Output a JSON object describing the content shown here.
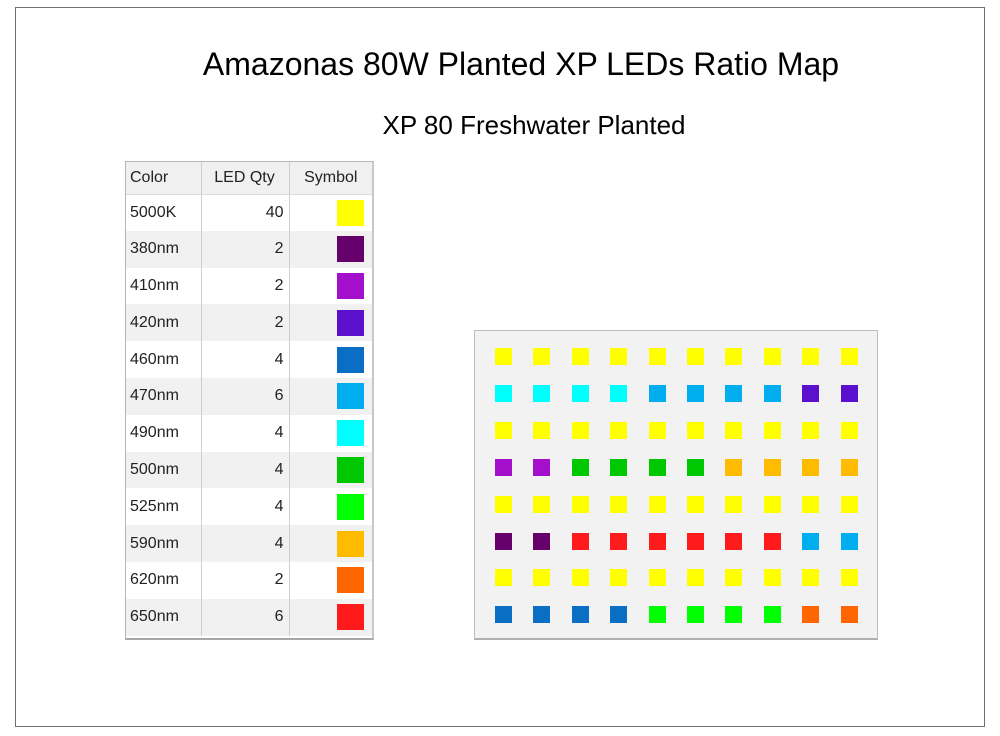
{
  "title": "Amazonas 80W Planted XP LEDs Ratio Map",
  "subtitle": "XP 80 Freshwater Planted",
  "legend": {
    "headers": {
      "color": "Color",
      "qty": "LED Qty",
      "symbol": "Symbol"
    },
    "rows": [
      {
        "color": "5000K",
        "qty": "40",
        "swatch": "#ffff00"
      },
      {
        "color": "380nm",
        "qty": "2",
        "swatch": "#66006a"
      },
      {
        "color": "410nm",
        "qty": "2",
        "swatch": "#a40fcc"
      },
      {
        "color": "420nm",
        "qty": "2",
        "swatch": "#5a10cc"
      },
      {
        "color": "460nm",
        "qty": "4",
        "swatch": "#0a6fc4"
      },
      {
        "color": "470nm",
        "qty": "6",
        "swatch": "#00adee"
      },
      {
        "color": "490nm",
        "qty": "4",
        "swatch": "#00ffff"
      },
      {
        "color": "500nm",
        "qty": "4",
        "swatch": "#00c800"
      },
      {
        "color": "525nm",
        "qty": "4",
        "swatch": "#00ff00"
      },
      {
        "color": "590nm",
        "qty": "4",
        "swatch": "#ffbb00"
      },
      {
        "color": "620nm",
        "qty": "2",
        "swatch": "#ff6600"
      },
      {
        "color": "650nm",
        "qty": "6",
        "swatch": "#ff1b1b"
      }
    ]
  },
  "led_map": {
    "columns": 10,
    "rows": [
      [
        "5000K",
        "5000K",
        "5000K",
        "5000K",
        "5000K",
        "5000K",
        "5000K",
        "5000K",
        "5000K",
        "5000K"
      ],
      [
        "490nm",
        "490nm",
        "490nm",
        "490nm",
        "470nm",
        "470nm",
        "470nm",
        "470nm",
        "420nm",
        "420nm"
      ],
      [
        "5000K",
        "5000K",
        "5000K",
        "5000K",
        "5000K",
        "5000K",
        "5000K",
        "5000K",
        "5000K",
        "5000K"
      ],
      [
        "410nm",
        "410nm",
        "500nm",
        "500nm",
        "500nm",
        "500nm",
        "590nm",
        "590nm",
        "590nm",
        "590nm"
      ],
      [
        "5000K",
        "5000K",
        "5000K",
        "5000K",
        "5000K",
        "5000K",
        "5000K",
        "5000K",
        "5000K",
        "5000K"
      ],
      [
        "380nm",
        "380nm",
        "650nm",
        "650nm",
        "650nm",
        "650nm",
        "650nm",
        "650nm",
        "470nm",
        "470nm"
      ],
      [
        "5000K",
        "5000K",
        "5000K",
        "5000K",
        "5000K",
        "5000K",
        "5000K",
        "5000K",
        "5000K",
        "5000K"
      ],
      [
        "460nm",
        "460nm",
        "460nm",
        "460nm",
        "525nm",
        "525nm",
        "525nm",
        "525nm",
        "620nm",
        "620nm"
      ]
    ]
  }
}
